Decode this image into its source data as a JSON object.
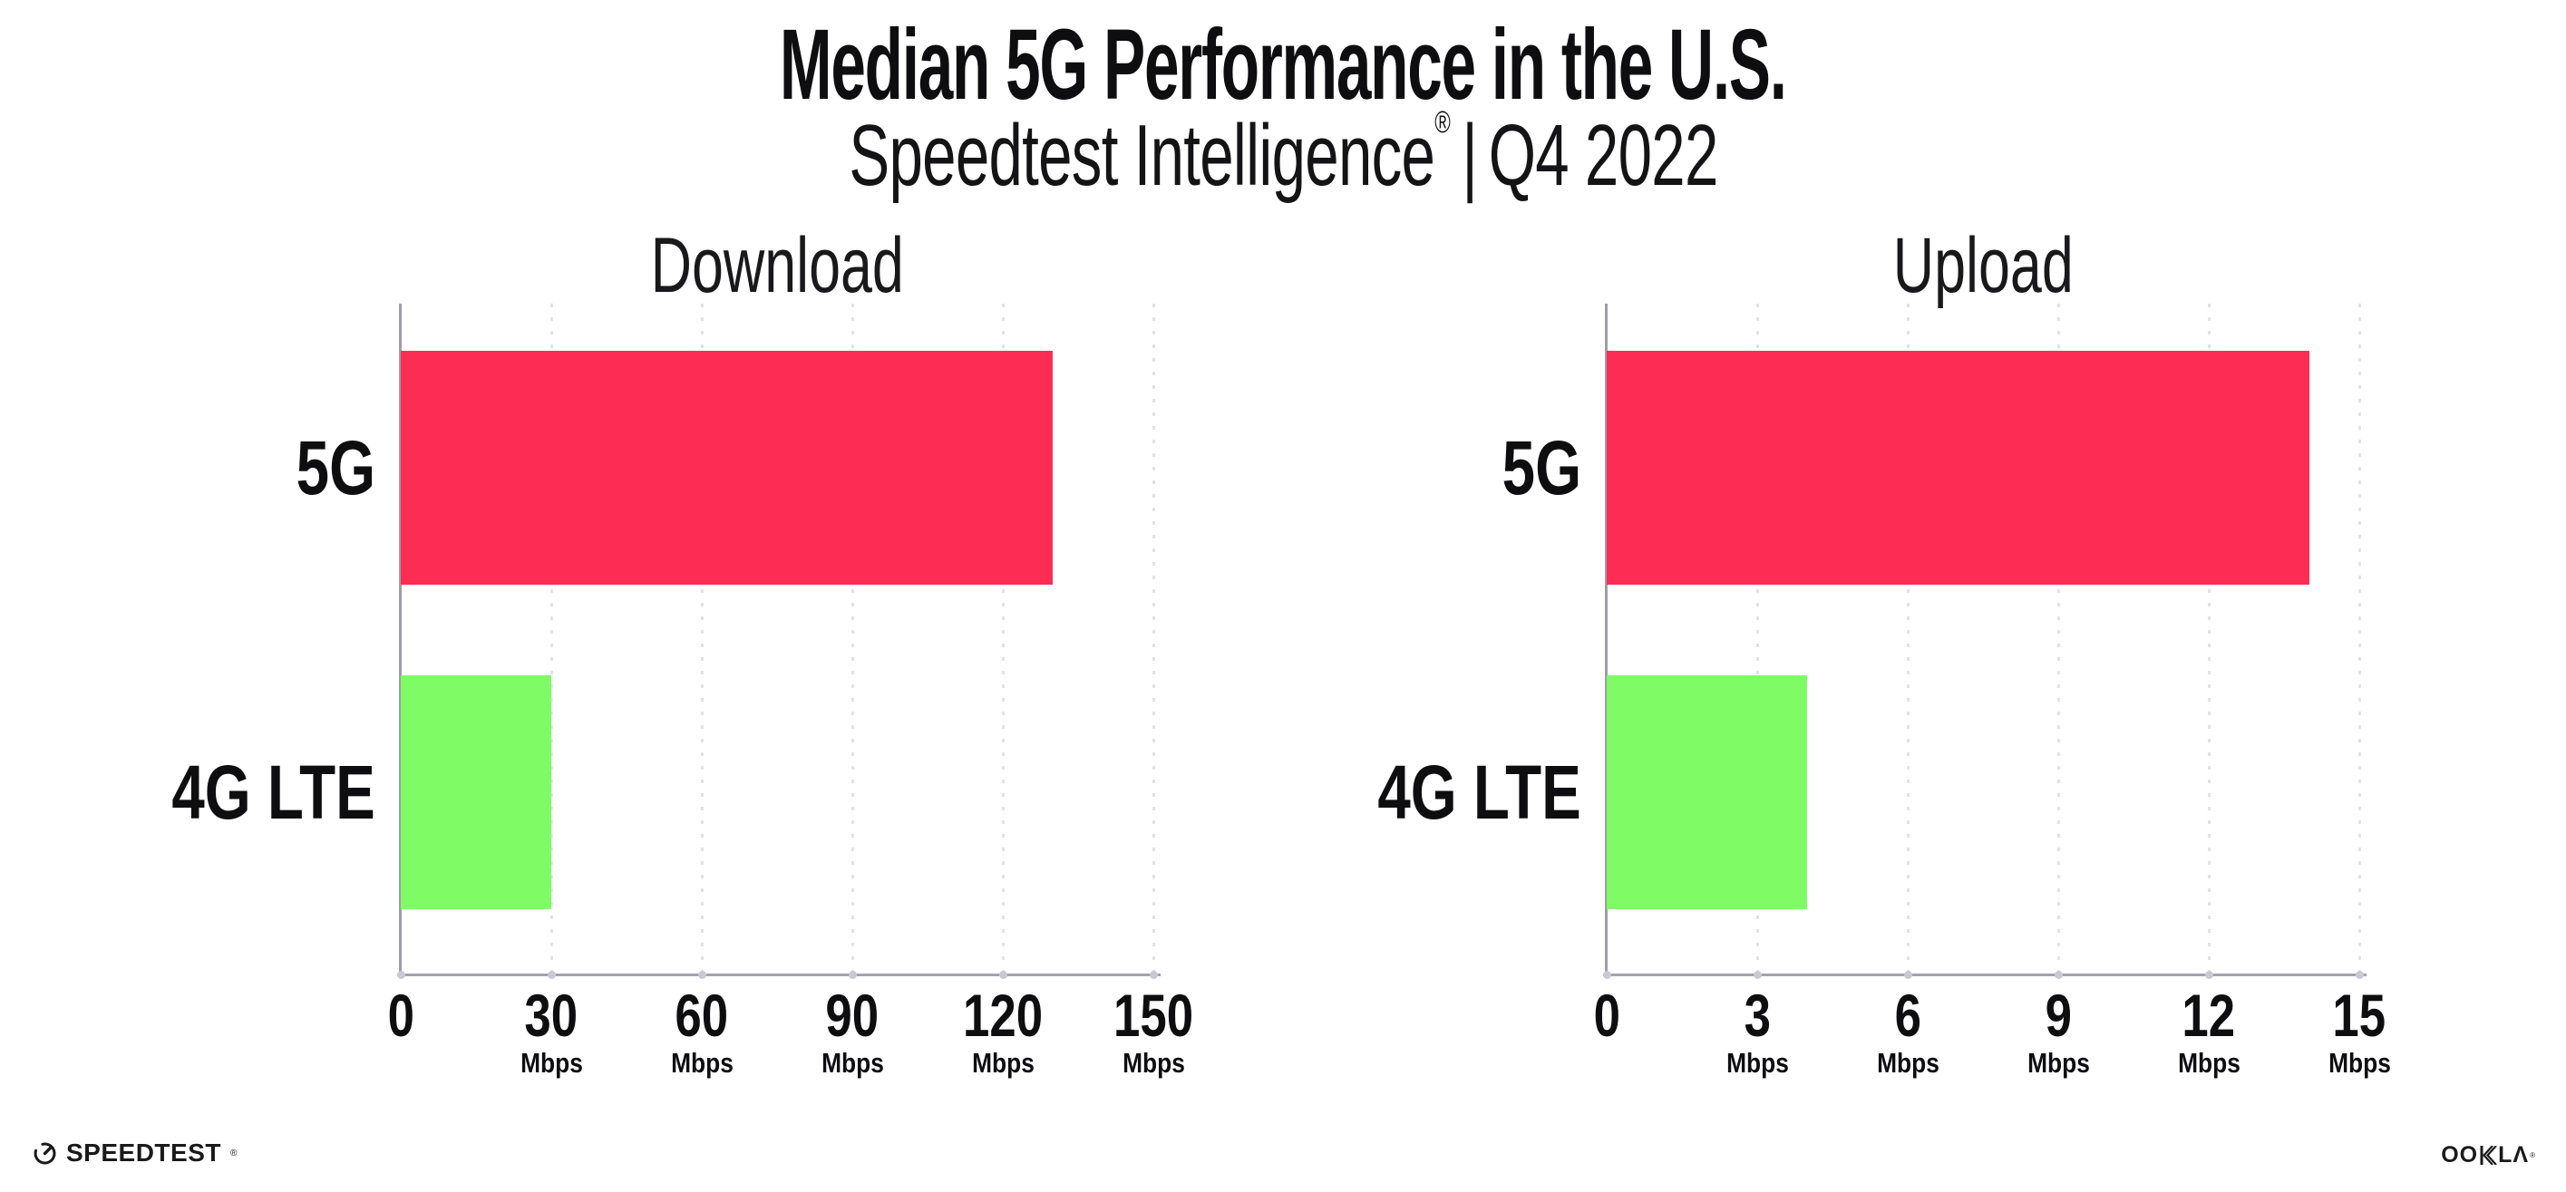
{
  "header": {
    "title": "Median 5G Performance in the U.S.",
    "subtitle": {
      "brand": "Speedtest Intelligence",
      "registered": "®",
      "separator": "|",
      "period": "Q4 2022"
    }
  },
  "chart_data": [
    {
      "type": "bar",
      "orientation": "horizontal",
      "title": "Download",
      "categories": [
        "5G",
        "4G LTE"
      ],
      "values": [
        130,
        30
      ],
      "unit": "Mbps",
      "xlim": [
        0,
        150
      ],
      "xticks": [
        0,
        30,
        60,
        90,
        120,
        150
      ],
      "bar_colors": [
        "#fd2c55",
        "#7ffb66"
      ],
      "grid": "dotted-vertical",
      "legend": false
    },
    {
      "type": "bar",
      "orientation": "horizontal",
      "title": "Upload",
      "categories": [
        "5G",
        "4G LTE"
      ],
      "values": [
        14,
        4
      ],
      "unit": "Mbps",
      "xlim": [
        0,
        15
      ],
      "xticks": [
        0,
        3,
        6,
        9,
        12,
        15
      ],
      "bar_colors": [
        "#fd2c55",
        "#7ffb66"
      ],
      "grid": "dotted-vertical",
      "legend": false
    }
  ],
  "footer": {
    "speedtest_wordmark": "SPEEDTEST",
    "speedtest_mark": "®",
    "ookla_left": "OO",
    "ookla_right": "LΛ",
    "ookla_mark": "®"
  },
  "colors": {
    "bar_5g": "#fd2c55",
    "bar_4g_lte": "#7ffb66",
    "axis": "#a3a3ab",
    "grid_dot": "#e2e2ec",
    "text": "#0e0e10"
  }
}
